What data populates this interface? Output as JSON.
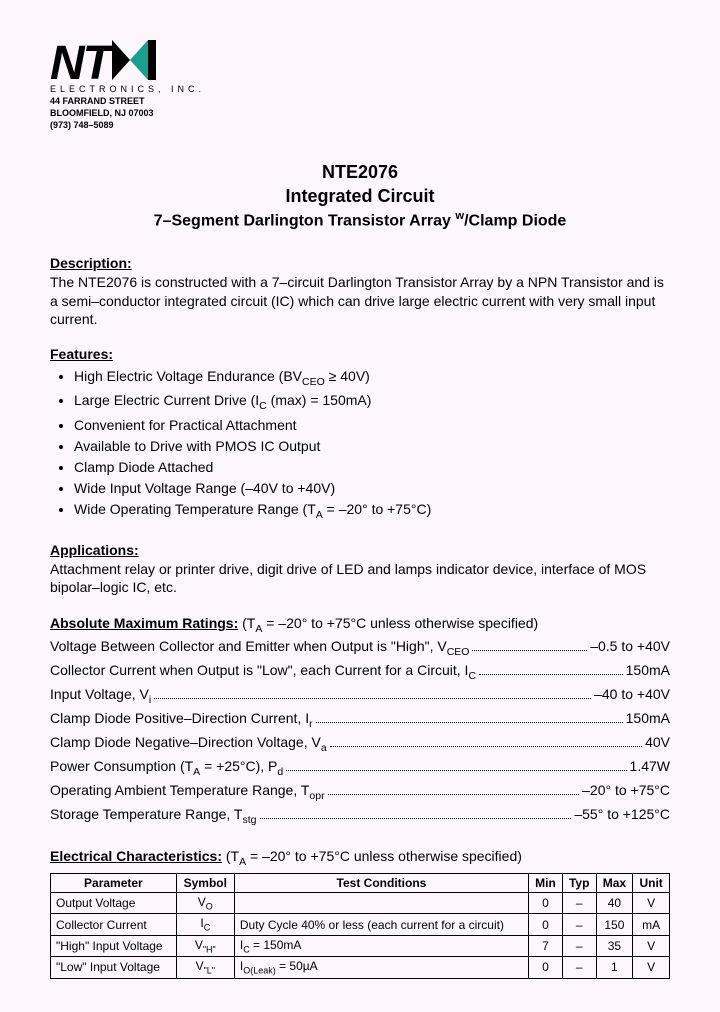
{
  "logo": {
    "text": "NT",
    "sub": "ELECTRONICS, INC.",
    "addr1": "44 FARRAND STREET",
    "addr2": "BLOOMFIELD, NJ 07003",
    "addr3": "(973) 748–5089",
    "tri_color": "#1a9e8f"
  },
  "title": {
    "l1": "NTE2076",
    "l2": "Integrated Circuit",
    "l3": "7–Segment Darlington Transistor Array ",
    "l3sup": "w",
    "l3end": "/Clamp Diode"
  },
  "description": {
    "head": "Description:",
    "text": "The NTE2076 is constructed with a 7–circuit Darlington Transistor Array by a NPN Transistor and is a semi–conductor integrated circuit (IC) which can drive large electric current with very small input current."
  },
  "features": {
    "head": "Features:",
    "items": [
      "High Electric Voltage Endurance (BV_CEO ≥ 40V)",
      "Large Electric Current Drive (I_C (max) = 150mA)",
      "Convenient for Practical Attachment",
      "Available to Drive with PMOS IC Output",
      "Clamp Diode Attached",
      "Wide Input Voltage Range (–40V to +40V)",
      "Wide Operating Temperature Range (T_A = –20° to +75°C)"
    ]
  },
  "applications": {
    "head": "Applications:",
    "text": "Attachment relay or printer drive, digit drive of LED and lamps indicator device, interface of MOS bipolar–logic IC, etc."
  },
  "ratings": {
    "head": "Absolute Maximum Ratings:",
    "cond": "(T_A = –20° to +75°C unless otherwise specified)",
    "rows": [
      {
        "label": "Voltage Between Collector and Emitter when Output is \"High\", V_CEO",
        "val": "–0.5 to +40V"
      },
      {
        "label": "Collector Current when Output is \"Low\", each Current for a Circuit, I_C",
        "val": "150mA"
      },
      {
        "label": "Input Voltage, V_i",
        "val": "–40 to +40V"
      },
      {
        "label": "Clamp Diode Positive–Direction Current, I_r",
        "val": "150mA"
      },
      {
        "label": "Clamp Diode Negative–Direction Voltage, V_a",
        "val": "40V"
      },
      {
        "label": "Power Consumption (T_A = +25°C), P_d",
        "val": "1.47W"
      },
      {
        "label": "Operating Ambient Temperature Range, T_opr",
        "val": "–20° to +75°C"
      },
      {
        "label": "Storage Temperature Range, T_stg",
        "val": "–55° to +125°C"
      }
    ]
  },
  "elec": {
    "head": "Electrical Characteristics:",
    "cond": "(T_A = –20° to +75°C unless otherwise specified)",
    "headers": [
      "Parameter",
      "Symbol",
      "Test Conditions",
      "Min",
      "Typ",
      "Max",
      "Unit"
    ],
    "rows": [
      [
        "Output Voltage",
        "V_O",
        "",
        "0",
        "–",
        "40",
        "V"
      ],
      [
        "Collector Current",
        "I_C",
        "Duty Cycle 40% or less (each current for a circuit)",
        "0",
        "–",
        "150",
        "mA"
      ],
      [
        "\"High\" Input Voltage",
        "V_\"H\"",
        "I_C = 150mA",
        "7",
        "–",
        "35",
        "V"
      ],
      [
        "\"Low\" Input Voltage",
        "V_\"L\"",
        "I_O(Leak) = 50µA",
        "0",
        "–",
        "1",
        "V"
      ]
    ]
  }
}
